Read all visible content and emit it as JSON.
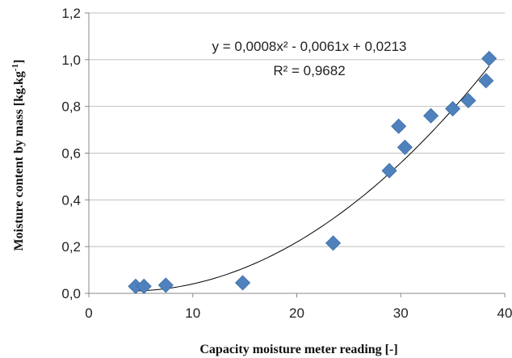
{
  "chart_data": {
    "type": "scatter",
    "xlabel": "Capacity moisture meter reading [-]",
    "ylabel_main": "Moisture content by mass [kg.kg",
    "ylabel_sup": "-1",
    "ylabel_end": "]",
    "xlim": [
      0,
      40
    ],
    "ylim": [
      0,
      1.2
    ],
    "x_ticks": [
      0,
      10,
      20,
      30,
      40
    ],
    "x_tick_labels": [
      "0",
      "10",
      "20",
      "30",
      "40"
    ],
    "y_ticks": [
      0,
      0.2,
      0.4,
      0.6,
      0.8,
      1.0,
      1.2
    ],
    "y_tick_labels": [
      "0,0",
      "0,2",
      "0,4",
      "0,6",
      "0,8",
      "1,0",
      "1,2"
    ],
    "grid": "horizontal",
    "marker": "diamond",
    "marker_color": "#4F81BD",
    "points": [
      {
        "x": 4.5,
        "y": 0.03
      },
      {
        "x": 5.3,
        "y": 0.03
      },
      {
        "x": 7.4,
        "y": 0.035
      },
      {
        "x": 14.8,
        "y": 0.045
      },
      {
        "x": 23.5,
        "y": 0.215
      },
      {
        "x": 28.9,
        "y": 0.525
      },
      {
        "x": 29.8,
        "y": 0.715
      },
      {
        "x": 30.4,
        "y": 0.625
      },
      {
        "x": 32.9,
        "y": 0.76
      },
      {
        "x": 35.0,
        "y": 0.79
      },
      {
        "x": 36.5,
        "y": 0.825
      },
      {
        "x": 38.2,
        "y": 0.91
      },
      {
        "x": 38.5,
        "y": 1.005
      }
    ],
    "trendline": {
      "type": "polynomial",
      "coefficients": [
        0.0008,
        -0.0061,
        0.0213
      ],
      "x_range": [
        4.5,
        38.5
      ],
      "color": "#000000",
      "equation_label": "y = 0,0008x² - 0,0061x + 0,0213",
      "r2_label": "R² = 0,9682"
    }
  }
}
